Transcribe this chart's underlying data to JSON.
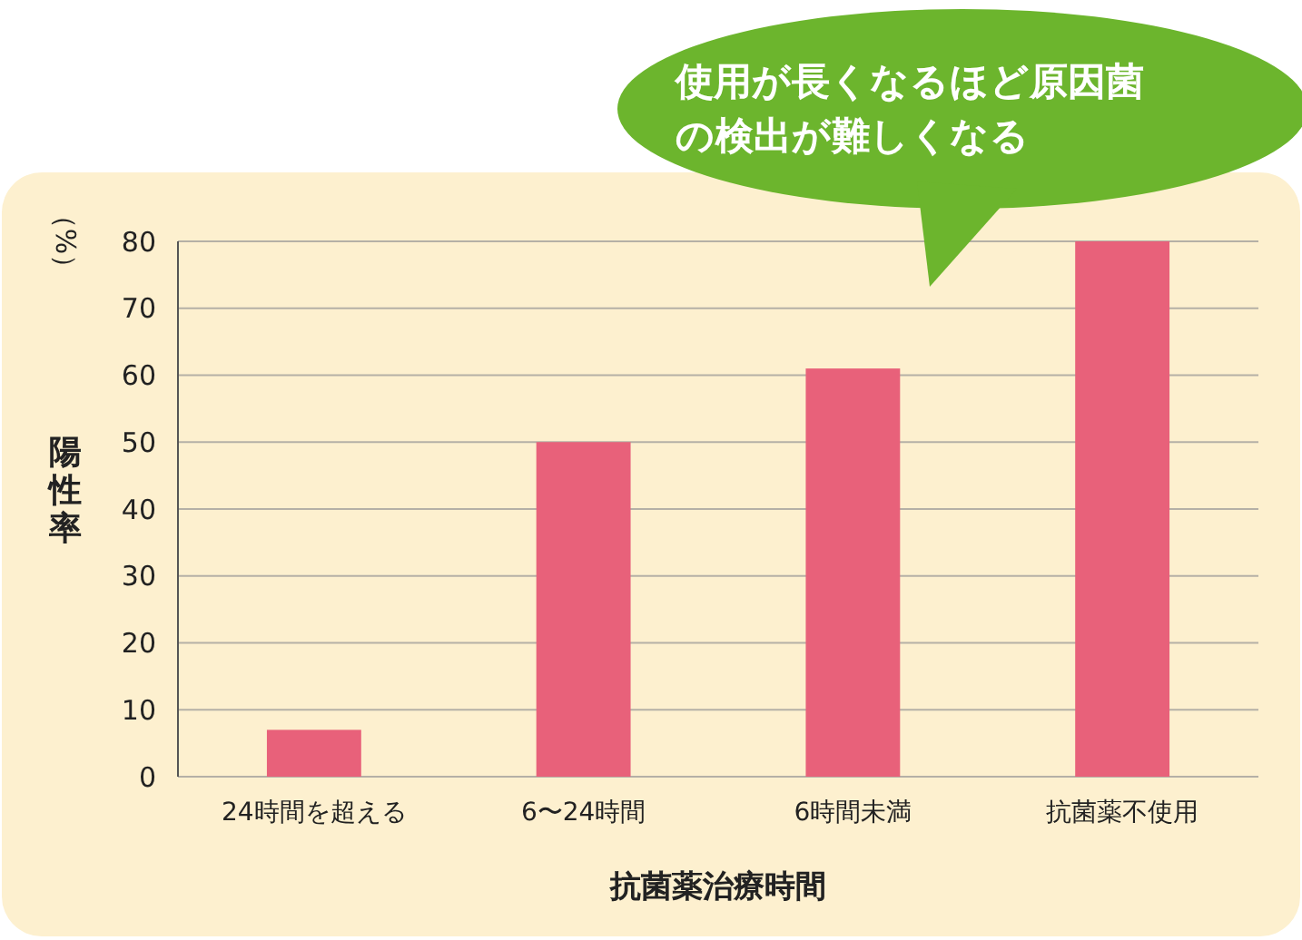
{
  "chart_data": {
    "type": "bar",
    "xlabel": "抗菌薬治療時間",
    "ylabel": "陽性率",
    "categories": [
      "24時間を超える",
      "6〜24時間",
      "6時間未満",
      "抗菌薬不使用"
    ],
    "values": [
      7,
      50,
      61,
      80
    ],
    "color": "#e8617a",
    "ylim": [
      0,
      80
    ],
    "yticks": [
      0,
      10,
      20,
      30,
      40,
      50,
      60,
      70,
      80
    ],
    "grid": "y",
    "annotations": [
      "（%）",
      "使用が長くなるほど原因菌の検出が難しくなる"
    ]
  }
}
